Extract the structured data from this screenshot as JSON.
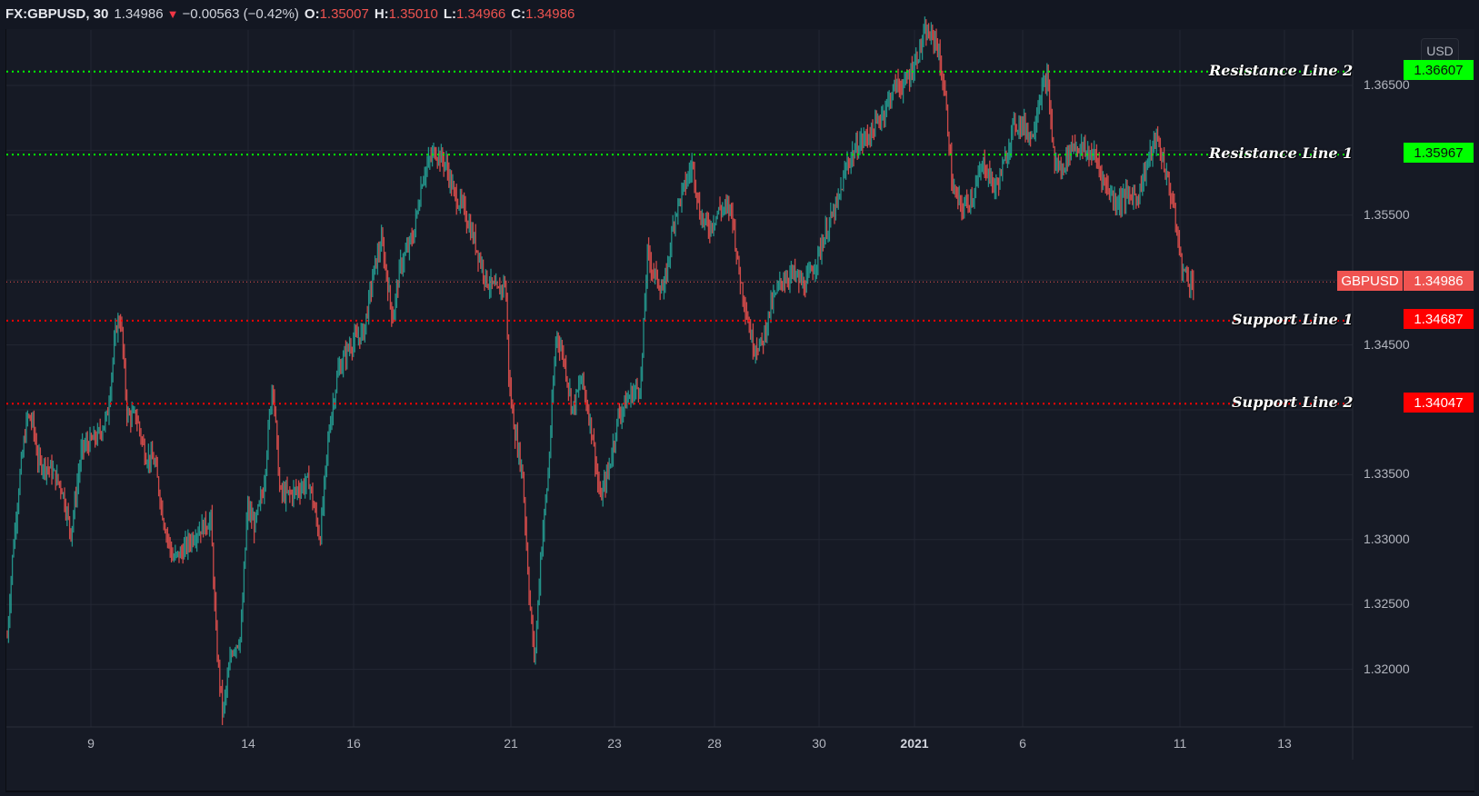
{
  "header": {
    "symbol": "FX:GBPUSD, 30",
    "last": "1.34986",
    "direction_icon": "triangle-down",
    "change": "−0.00563 (−0.42%)",
    "open_label": "O:",
    "open": "1.35007",
    "high_label": "H:",
    "high": "1.35010",
    "low_label": "L:",
    "low": "1.34966",
    "close_label": "C:",
    "close": "1.34986"
  },
  "currency_button": "USD",
  "colors": {
    "background": "#131722",
    "up_candle": "#26a69a",
    "down_candle": "#ef5350",
    "resistance": "#00ff00",
    "support": "#ff0000",
    "current_price": "#ef5350",
    "grid": "#232733"
  },
  "horizontal_lines": [
    {
      "name": "Resistance Line 2",
      "price": "1.36607",
      "type": "resistance"
    },
    {
      "name": "Resistance Line 1",
      "price": "1.35967",
      "type": "resistance"
    },
    {
      "name": "Support Line 1",
      "price": "1.34687",
      "type": "support"
    },
    {
      "name": "Support Line 2",
      "price": "1.34047",
      "type": "support"
    }
  ],
  "current_price_tag": {
    "symbol": "GBPUSD",
    "price": "1.34986"
  },
  "price_axis": [
    "1.36500",
    "1.35500",
    "1.34500",
    "1.33500",
    "1.33000",
    "1.32500",
    "1.32000"
  ],
  "time_axis": [
    {
      "label": "9",
      "x": 100
    },
    {
      "label": "14",
      "x": 273
    },
    {
      "label": "16",
      "x": 389
    },
    {
      "label": "21",
      "x": 562
    },
    {
      "label": "23",
      "x": 676
    },
    {
      "label": "28",
      "x": 786
    },
    {
      "label": "30",
      "x": 901
    },
    {
      "label": "2021",
      "x": 1006,
      "bold": true
    },
    {
      "label": "6",
      "x": 1125
    },
    {
      "label": "11",
      "x": 1298
    },
    {
      "label": "13",
      "x": 1413
    }
  ],
  "chart_data": {
    "type": "candlestick",
    "title": "FX:GBPUSD, 30",
    "xlabel": "",
    "ylabel": "USD",
    "ylim": [
      1.3165,
      1.3695
    ],
    "grid": true,
    "x_ticks": [
      "9",
      "14",
      "16",
      "21",
      "23",
      "28",
      "30",
      "2021",
      "6",
      "11",
      "13"
    ],
    "y_ticks": [
      1.32,
      1.325,
      1.33,
      1.335,
      1.34,
      1.345,
      1.35,
      1.355,
      1.36,
      1.365
    ],
    "horizontal_levels": {
      "Resistance Line 2": 1.36607,
      "Resistance Line 1": 1.35967,
      "Support Line 1": 1.34687,
      "Support Line 2": 1.34047,
      "Current": 1.34986
    },
    "price_path": [
      [
        8,
        1.3225
      ],
      [
        14,
        1.329
      ],
      [
        22,
        1.335
      ],
      [
        30,
        1.3395
      ],
      [
        36,
        1.339
      ],
      [
        42,
        1.336
      ],
      [
        55,
        1.3355
      ],
      [
        68,
        1.334
      ],
      [
        78,
        1.3305
      ],
      [
        90,
        1.337
      ],
      [
        108,
        1.338
      ],
      [
        118,
        1.3395
      ],
      [
        128,
        1.3465
      ],
      [
        133,
        1.347
      ],
      [
        140,
        1.3395
      ],
      [
        150,
        1.3395
      ],
      [
        160,
        1.3365
      ],
      [
        170,
        1.336
      ],
      [
        180,
        1.3315
      ],
      [
        190,
        1.3285
      ],
      [
        200,
        1.329
      ],
      [
        215,
        1.3305
      ],
      [
        232,
        1.3315
      ],
      [
        238,
        1.322
      ],
      [
        245,
        1.3165
      ],
      [
        255,
        1.3215
      ],
      [
        265,
        1.3225
      ],
      [
        272,
        1.3325
      ],
      [
        280,
        1.331
      ],
      [
        290,
        1.334
      ],
      [
        300,
        1.3425
      ],
      [
        308,
        1.3335
      ],
      [
        320,
        1.3335
      ],
      [
        340,
        1.3345
      ],
      [
        352,
        1.33
      ],
      [
        362,
        1.3385
      ],
      [
        372,
        1.343
      ],
      [
        385,
        1.345
      ],
      [
        400,
        1.346
      ],
      [
        412,
        1.351
      ],
      [
        420,
        1.353
      ],
      [
        432,
        1.347
      ],
      [
        440,
        1.351
      ],
      [
        455,
        1.3535
      ],
      [
        465,
        1.358
      ],
      [
        478,
        1.36
      ],
      [
        490,
        1.359
      ],
      [
        500,
        1.3565
      ],
      [
        510,
        1.3555
      ],
      [
        522,
        1.353
      ],
      [
        535,
        1.35
      ],
      [
        548,
        1.349
      ],
      [
        556,
        1.35
      ],
      [
        560,
        1.342
      ],
      [
        566,
        1.3385
      ],
      [
        575,
        1.335
      ],
      [
        582,
        1.326
      ],
      [
        588,
        1.3205
      ],
      [
        595,
        1.329
      ],
      [
        603,
        1.335
      ],
      [
        612,
        1.346
      ],
      [
        620,
        1.344
      ],
      [
        630,
        1.34
      ],
      [
        640,
        1.3425
      ],
      [
        652,
        1.338
      ],
      [
        660,
        1.333
      ],
      [
        670,
        1.3355
      ],
      [
        680,
        1.3395
      ],
      [
        692,
        1.341
      ],
      [
        705,
        1.342
      ],
      [
        712,
        1.352
      ],
      [
        720,
        1.3505
      ],
      [
        730,
        1.349
      ],
      [
        742,
        1.355
      ],
      [
        752,
        1.357
      ],
      [
        762,
        1.359
      ],
      [
        770,
        1.355
      ],
      [
        780,
        1.354
      ],
      [
        792,
        1.3555
      ],
      [
        805,
        1.3555
      ],
      [
        812,
        1.351
      ],
      [
        820,
        1.348
      ],
      [
        828,
        1.345
      ],
      [
        838,
        1.345
      ],
      [
        848,
        1.348
      ],
      [
        860,
        1.35
      ],
      [
        872,
        1.3505
      ],
      [
        885,
        1.3495
      ],
      [
        898,
        1.3515
      ],
      [
        910,
        1.354
      ],
      [
        922,
        1.356
      ],
      [
        932,
        1.359
      ],
      [
        945,
        1.3605
      ],
      [
        960,
        1.3615
      ],
      [
        972,
        1.363
      ],
      [
        985,
        1.365
      ],
      [
        995,
        1.365
      ],
      [
        1005,
        1.3665
      ],
      [
        1018,
        1.369
      ],
      [
        1030,
        1.3685
      ],
      [
        1040,
        1.364
      ],
      [
        1048,
        1.357
      ],
      [
        1058,
        1.3555
      ],
      [
        1070,
        1.3565
      ],
      [
        1082,
        1.359
      ],
      [
        1095,
        1.357
      ],
      [
        1105,
        1.359
      ],
      [
        1115,
        1.362
      ],
      [
        1125,
        1.362
      ],
      [
        1135,
        1.361
      ],
      [
        1145,
        1.3645
      ],
      [
        1152,
        1.3655
      ],
      [
        1160,
        1.359
      ],
      [
        1168,
        1.3585
      ],
      [
        1180,
        1.3605
      ],
      [
        1192,
        1.36
      ],
      [
        1205,
        1.3595
      ],
      [
        1215,
        1.3575
      ],
      [
        1228,
        1.356
      ],
      [
        1240,
        1.3565
      ],
      [
        1252,
        1.3565
      ],
      [
        1262,
        1.359
      ],
      [
        1272,
        1.361
      ],
      [
        1280,
        1.359
      ],
      [
        1290,
        1.356
      ],
      [
        1300,
        1.351
      ],
      [
        1308,
        1.35
      ],
      [
        1313,
        1.3497
      ]
    ]
  }
}
